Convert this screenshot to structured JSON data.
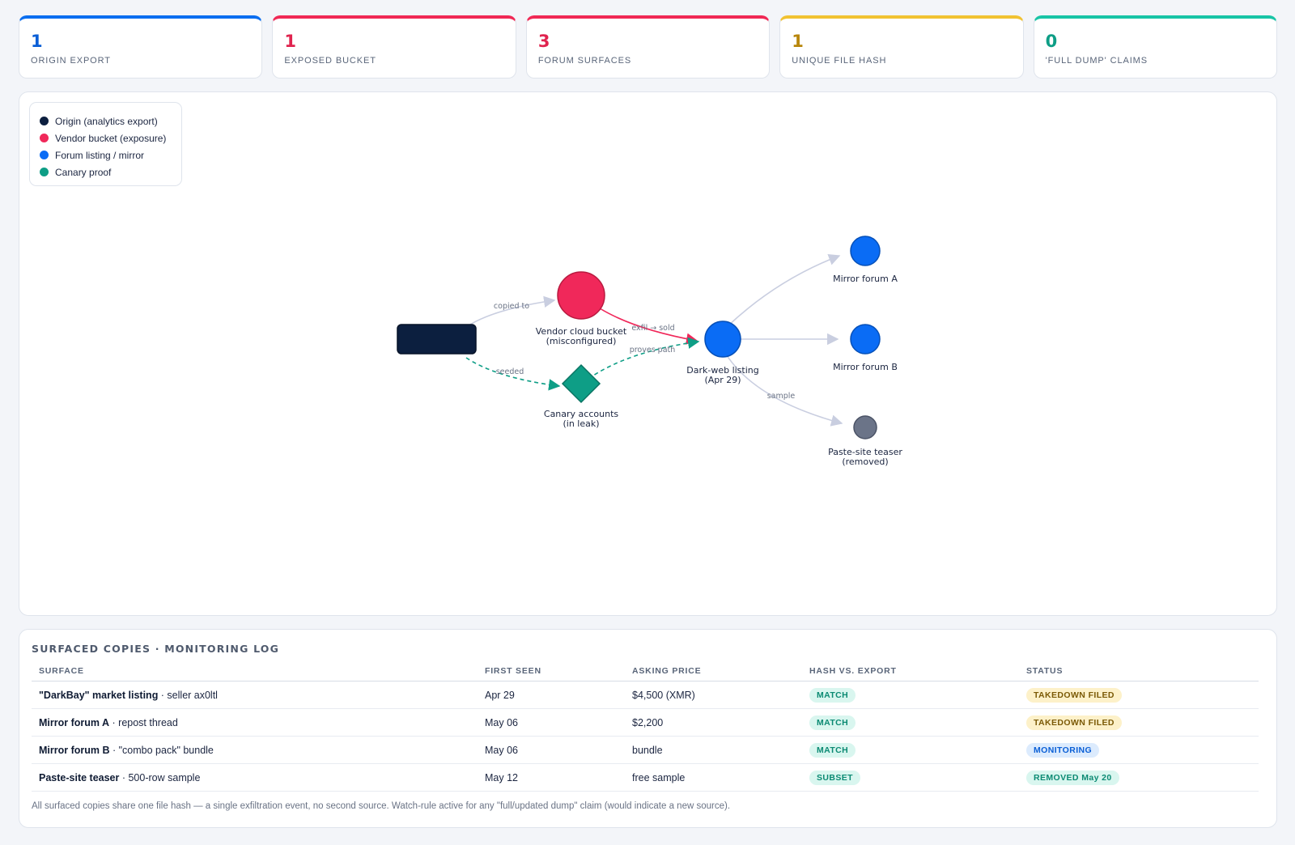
{
  "colors": {
    "blue": "#0a6ef0",
    "red": "#f02855",
    "amber": "#f1c232",
    "teal": "#12b39a",
    "navy": "#0c1f3f",
    "pink": "#f0285a",
    "forum": "#0a6cf5",
    "canary": "#0e9e86",
    "grey_node": "#6b7488",
    "edge": "#c9cee0"
  },
  "stats": [
    {
      "value": "1",
      "label": "ORIGIN EXPORT",
      "color": "#0a6ef0",
      "text_color": "#0a5fd6"
    },
    {
      "value": "1",
      "label": "EXPOSED BUCKET",
      "color": "#f02855",
      "text_color": "#e0244f"
    },
    {
      "value": "3",
      "label": "FORUM SURFACES",
      "color": "#f02855",
      "text_color": "#e0244f"
    },
    {
      "value": "1",
      "label": "UNIQUE FILE HASH",
      "color": "#f1c232",
      "text_color": "#b8860b"
    },
    {
      "value": "0",
      "label": "'FULL DUMP' CLAIMS",
      "color": "#18c4a6",
      "text_color": "#0e9e86"
    }
  ],
  "legend": [
    {
      "label": "Origin (analytics export)",
      "color": "#0c1f3f"
    },
    {
      "label": "Vendor bucket (exposure)",
      "color": "#f0285a"
    },
    {
      "label": "Forum listing / mirror",
      "color": "#0a6cf5"
    },
    {
      "label": "Canary proof",
      "color": "#0e9e86"
    }
  ],
  "graph": {
    "nodes": {
      "bucket": {
        "line1": "Vendor cloud bucket",
        "line2": "(misconfigured)"
      },
      "canary": {
        "line1": "Canary accounts",
        "line2": "(in leak)"
      },
      "darkweb": {
        "line1": "Dark-web listing",
        "line2": "(Apr 29)"
      },
      "mirror_a": {
        "line1": "Mirror forum A"
      },
      "mirror_b": {
        "line1": "Mirror forum B"
      },
      "paste": {
        "line1": "Paste-site teaser",
        "line2": "(removed)"
      }
    },
    "edges": {
      "copied_to": "copied to",
      "seeded": "seeded",
      "exfil_sold": "exfil → sold",
      "proves_path": "proves path",
      "sample": "sample"
    }
  },
  "log": {
    "title": "SURFACED COPIES · MONITORING LOG",
    "headers": [
      "SURFACE",
      "FIRST SEEN",
      "ASKING PRICE",
      "HASH VS. EXPORT",
      "STATUS"
    ],
    "rows": [
      {
        "name": "\"DarkBay\" market listing",
        "detail": " · seller ax0ltl",
        "first_seen": "Apr 29",
        "price": "$4,500 (XMR)",
        "hash": "MATCH",
        "status": "TAKEDOWN FILED",
        "status_kind": "takedown"
      },
      {
        "name": "Mirror forum A",
        "detail": " · repost thread",
        "first_seen": "May 06",
        "price": "$2,200",
        "hash": "MATCH",
        "status": "TAKEDOWN FILED",
        "status_kind": "takedown"
      },
      {
        "name": "Mirror forum B",
        "detail": " · \"combo pack\" bundle",
        "first_seen": "May 06",
        "price": "bundle",
        "hash": "MATCH",
        "status": "MONITORING",
        "status_kind": "monitoring"
      },
      {
        "name": "Paste-site teaser",
        "detail": " · 500-row sample",
        "first_seen": "May 12",
        "price": "free sample",
        "hash": "SUBSET",
        "status": "REMOVED May 20",
        "status_kind": "removed"
      }
    ],
    "footnote": "All surfaced copies share one file hash — a single exfiltration event, no second source. Watch-rule active for any \"full/updated dump\" claim (would indicate a new source)."
  }
}
